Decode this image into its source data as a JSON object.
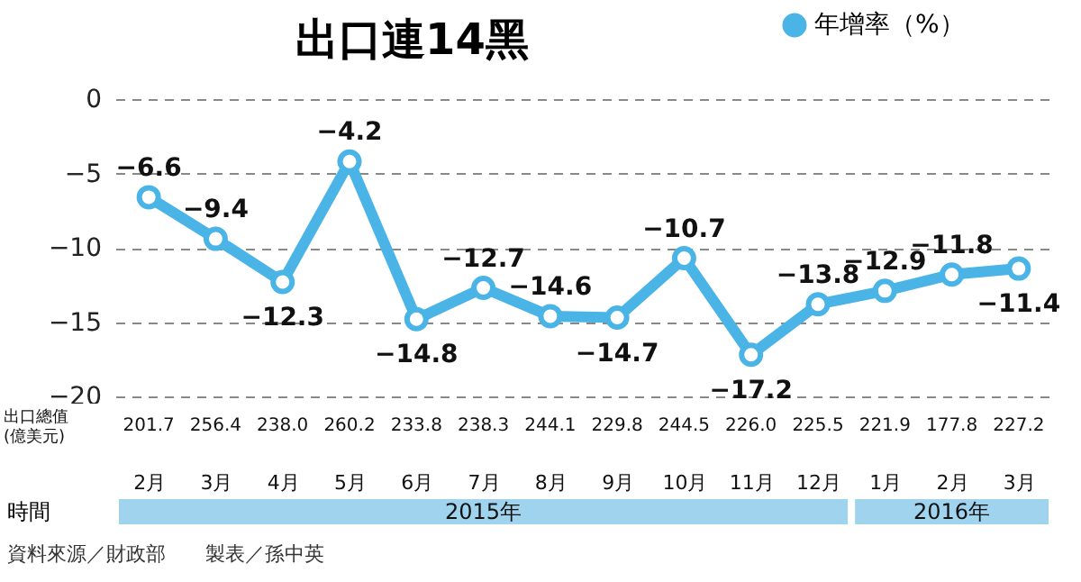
{
  "chart_data": [
    {
      "type": "line",
      "title": "出口連14黑",
      "categories": [
        "2月",
        "3月",
        "4月",
        "5月",
        "6月",
        "7月",
        "8月",
        "9月",
        "10月",
        "11月",
        "12月",
        "1月",
        "2月",
        "3月"
      ],
      "series": [
        {
          "name": "年增率（%）",
          "color": "#4ab4e6",
          "values": [
            -6.6,
            -9.4,
            -12.3,
            -4.2,
            -14.8,
            -12.7,
            -14.6,
            -14.7,
            -10.7,
            -17.2,
            -13.8,
            -12.9,
            -11.8,
            -11.4
          ]
        }
      ],
      "ylim": [
        -20,
        0
      ],
      "yticks": [
        0,
        -5,
        -10,
        -15,
        -20
      ],
      "grid": true,
      "legend": "top right",
      "marker": "circle",
      "data_labels": true,
      "annotations": [
        "時間",
        "2015年",
        "2016年",
        "資料來源／財政部　　製表／孫中英"
      ]
    },
    {
      "type": "other",
      "ylabel": "出口總值\n(億美元)",
      "annotations": [
        "201.7",
        "256.4",
        "238.0",
        "260.2",
        "233.8",
        "238.3",
        "244.1",
        "229.8",
        "244.5",
        "226.0",
        "225.5",
        "221.9",
        "177.8",
        "227.2"
      ]
    }
  ]
}
